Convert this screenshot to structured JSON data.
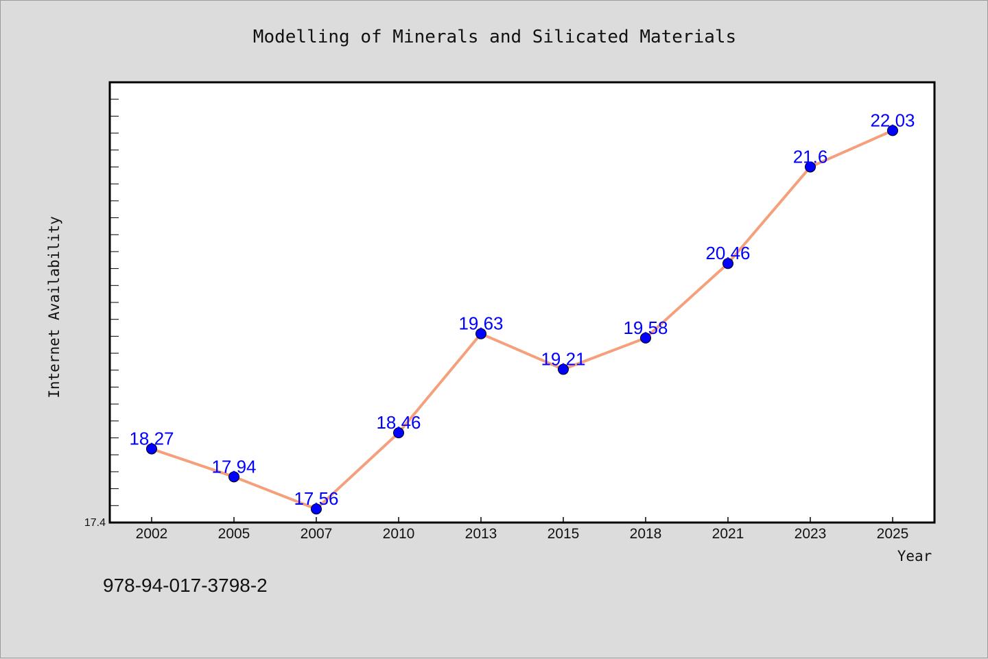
{
  "chart_data": {
    "type": "line",
    "title": "Modelling of Minerals and Silicated Materials",
    "xlabel": "Year",
    "ylabel": "Internet Availability",
    "categories": [
      "2002",
      "2005",
      "2007",
      "2010",
      "2013",
      "2015",
      "2018",
      "2021",
      "2023",
      "2025"
    ],
    "series": [
      {
        "values": [
          18.27,
          17.94,
          17.56,
          18.46,
          19.63,
          19.21,
          19.58,
          20.46,
          21.6,
          22.03
        ],
        "labels": [
          "18.27",
          "17.94",
          "17.56",
          "18.46",
          "19.63",
          "19.21",
          "19.58",
          "20.46",
          "21.6",
          "22.03"
        ],
        "line_color": "#f4a07c",
        "marker_color": "#0000ff"
      }
    ],
    "ylim": [
      17.4,
      22.6
    ],
    "yticks_labeled": [
      "17.4"
    ],
    "grid": false,
    "legend": "none",
    "background": "#dcdcdc",
    "plot_background": "#ffffff",
    "label_color": "#0000ff"
  },
  "footer": {
    "isbn": "978-94-017-3798-2"
  }
}
